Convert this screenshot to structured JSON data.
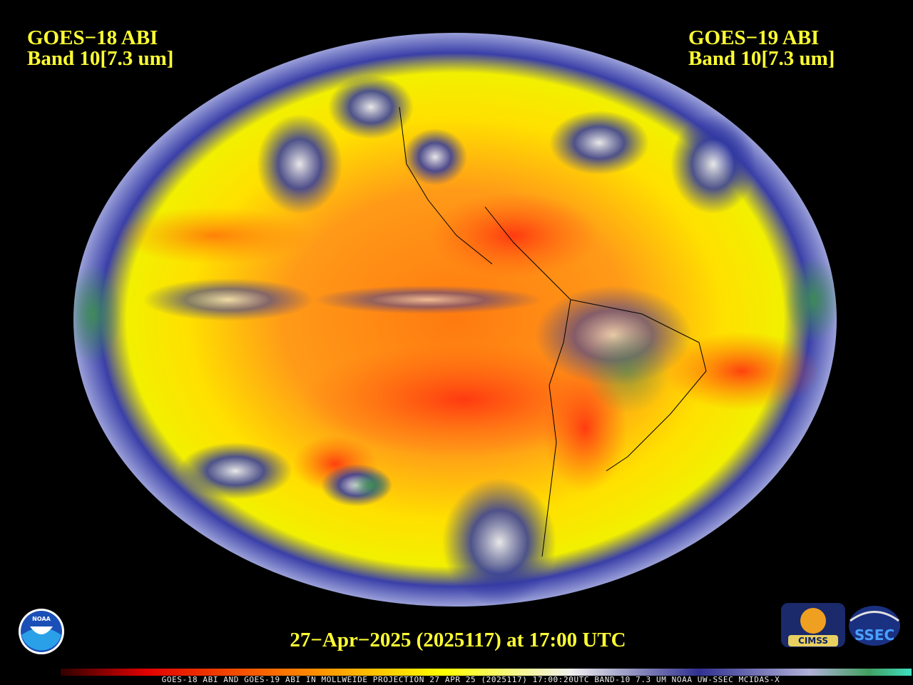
{
  "header": {
    "left": {
      "satellite": "GOES−18 ABI",
      "band": "Band 10[7.3 um]"
    },
    "right": {
      "satellite": "GOES−19 ABI",
      "band": "Band 10[7.3 um]"
    }
  },
  "timestamp": "27−Apr−2025 (2025117) at 17:00 UTC",
  "footer": "GOES-18 ABI AND GOES-19 ABI IN MOLLWEIDE PROJECTION 27 APR 25 (2025117) 17:00:20UTC BAND-10 7.3 UM NOAA UW-SSEC MCIDAS-X",
  "logos": {
    "noaa": "NOAA",
    "cimss": "CIMSS",
    "ssec": "SSEC"
  }
}
